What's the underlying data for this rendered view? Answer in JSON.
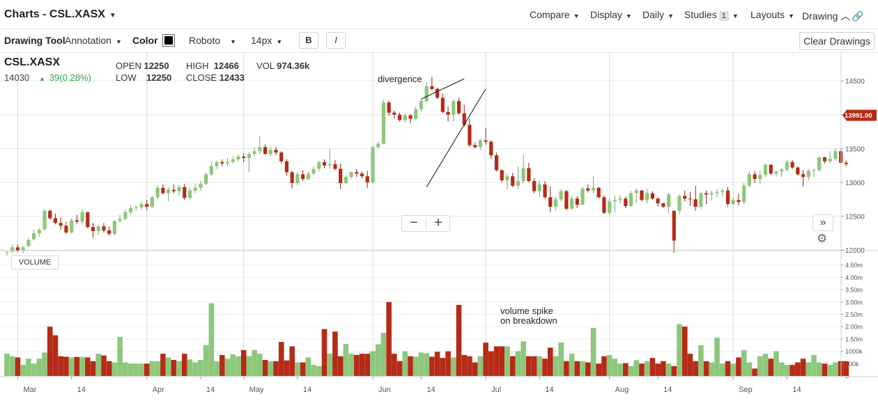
{
  "header": {
    "title": "Charts - CSL.XASX",
    "menus": [
      "Compare",
      "Display",
      "Daily",
      "Studies",
      "Layouts",
      "Drawing"
    ],
    "studies_count": "1"
  },
  "toolbar": {
    "drawing_tool_label": "Drawing Tool",
    "drawing_tool_value": "Annotation",
    "color_label": "Color",
    "color_value": "#000000",
    "font_value": "Roboto",
    "size_value": "14px",
    "bold_label": "B",
    "italic_label": "I",
    "clear_label": "Clear Drawings"
  },
  "quote": {
    "symbol": "CSL.XASX",
    "last": "14030",
    "change": "39(0.28%)",
    "open_label": "OPEN",
    "open": "12250",
    "high_label": "HIGH",
    "high": "12466",
    "vol_label": "VOL",
    "vol": "974.36k",
    "low_label": "LOW",
    "low": "12250",
    "close_label": "CLOSE",
    "close": "12433"
  },
  "panel": {
    "volume_label": "VOLUME"
  },
  "colors": {
    "up": "#8dc77c",
    "down": "#b52b15",
    "price_tag": "#b52b15",
    "change": "#27a844"
  },
  "chart_data": {
    "type": "candlestick",
    "price_axis": {
      "range": [
        11930,
        14830
      ],
      "ticks": [
        12000,
        12500,
        13000,
        13500,
        14000,
        14500
      ],
      "tick_labels": [
        "12000",
        "12500",
        "13000",
        "13500",
        "",
        "14500"
      ]
    },
    "volume_axis": {
      "range": [
        0,
        4.8
      ],
      "ticks": [
        0,
        0.5,
        1.0,
        1.5,
        2.0,
        2.5,
        3.0,
        3.5,
        4.0,
        4.5
      ],
      "tick_labels": [
        "0",
        "500k",
        "1000k",
        "1.50m",
        "2.00m",
        "2.50m",
        "3.00m",
        "3.50m",
        "4.00m",
        "4.50m"
      ]
    },
    "date_labels": [
      "Mar",
      "14",
      "Apr",
      "14",
      "May",
      "14",
      "Jun",
      "14",
      "Jul",
      "14",
      "Aug",
      "14",
      "Sep",
      "14"
    ],
    "month_separators": [
      "Mar",
      "Apr",
      "May",
      "Jun",
      "Jul",
      "Aug",
      "Sep"
    ],
    "current_price": "13991.00",
    "annotations": [
      {
        "text": "divergence"
      },
      {
        "text": "volume spike",
        "text2": "on breakdown"
      }
    ],
    "trendlines": [
      {
        "from": [
          "Jun 14",
          14230
        ],
        "to": [
          "Jun 26",
          14530
        ]
      },
      {
        "from": [
          "Jun 9",
          12930
        ],
        "to": [
          "Jun 30",
          14380
        ]
      }
    ],
    "candles": [
      [
        11960,
        11980,
        11920,
        11970,
        0.9
      ],
      [
        11980,
        12080,
        11960,
        12040,
        0.8
      ],
      [
        12040,
        12080,
        11970,
        11990,
        0.75
      ],
      [
        11990,
        12060,
        11950,
        12040,
        0.45
      ],
      [
        12060,
        12180,
        12040,
        12150,
        0.7
      ],
      [
        12160,
        12300,
        12140,
        12250,
        0.5
      ],
      [
        12250,
        12320,
        12200,
        12300,
        0.7
      ],
      [
        12310,
        12610,
        12290,
        12580,
        0.95
      ],
      [
        12580,
        12600,
        12450,
        12470,
        2.0
      ],
      [
        12470,
        12540,
        12380,
        12400,
        1.65
      ],
      [
        12400,
        12480,
        12300,
        12360,
        0.8
      ],
      [
        12360,
        12420,
        12240,
        12260,
        0.78
      ],
      [
        12260,
        12470,
        12240,
        12440,
        0.75
      ],
      [
        12440,
        12520,
        12380,
        12420,
        0.77
      ],
      [
        12420,
        12600,
        12380,
        12560,
        0.77
      ],
      [
        12560,
        12560,
        12320,
        12340,
        0.75
      ],
      [
        12340,
        12400,
        12180,
        12280,
        0.6
      ],
      [
        12280,
        12380,
        12220,
        12350,
        0.9
      ],
      [
        12350,
        12400,
        12260,
        12290,
        0.83
      ],
      [
        12290,
        12350,
        12210,
        12240,
        0.6
      ],
      [
        12240,
        12440,
        12220,
        12430,
        0.55
      ],
      [
        12430,
        12520,
        12400,
        12460,
        1.58
      ],
      [
        12460,
        12600,
        12440,
        12560,
        0.55
      ],
      [
        12560,
        12670,
        12520,
        12620,
        0.5
      ],
      [
        12620,
        12660,
        12580,
        12630,
        0.5
      ],
      [
        12630,
        12720,
        12600,
        12680,
        0.5
      ],
      [
        12680,
        12740,
        12590,
        12640,
        0.5
      ],
      [
        12640,
        12800,
        12620,
        12780,
        0.6
      ],
      [
        12780,
        12960,
        12760,
        12920,
        0.6
      ],
      [
        12920,
        12970,
        12820,
        12840,
        0.9
      ],
      [
        12840,
        12930,
        12720,
        12890,
        0.75
      ],
      [
        12890,
        12970,
        12840,
        12870,
        0.65
      ],
      [
        12870,
        12960,
        12800,
        12930,
        0.6
      ],
      [
        12930,
        12980,
        12740,
        12770,
        0.9
      ],
      [
        12770,
        12920,
        12750,
        12880,
        0.67
      ],
      [
        12880,
        12980,
        12840,
        12920,
        0.55
      ],
      [
        12920,
        13020,
        12880,
        12980,
        0.65
      ],
      [
        12980,
        13150,
        12960,
        13120,
        1.25
      ],
      [
        13120,
        13300,
        13100,
        13240,
        2.95
      ],
      [
        13240,
        13320,
        13200,
        13300,
        0.6
      ],
      [
        13300,
        13340,
        13240,
        13280,
        0.85
      ],
      [
        13280,
        13360,
        13240,
        13300,
        0.7
      ],
      [
        13300,
        13380,
        13280,
        13340,
        0.88
      ],
      [
        13340,
        13420,
        13300,
        13380,
        0.8
      ],
      [
        13380,
        13430,
        13300,
        13360,
        1.05
      ],
      [
        13360,
        13450,
        13150,
        13420,
        0.8
      ],
      [
        13420,
        13520,
        13380,
        13460,
        1.05
      ],
      [
        13460,
        13680,
        13420,
        13520,
        0.9
      ],
      [
        13520,
        13560,
        13410,
        13420,
        0.65
      ],
      [
        13420,
        13530,
        13380,
        13480,
        0.6
      ],
      [
        13480,
        13520,
        13400,
        13440,
        0.6
      ],
      [
        13440,
        13460,
        13280,
        13310,
        1.38
      ],
      [
        13310,
        13340,
        13100,
        13150,
        0.63
      ],
      [
        13150,
        13170,
        12910,
        12990,
        1.2
      ],
      [
        12990,
        13150,
        12960,
        13120,
        0.55
      ],
      [
        13120,
        13180,
        13020,
        13050,
        0.55
      ],
      [
        13050,
        13160,
        13030,
        13130,
        0.75
      ],
      [
        13130,
        13240,
        13100,
        13200,
        0.45
      ],
      [
        13200,
        13320,
        13160,
        13300,
        0.4
      ],
      [
        13300,
        13340,
        13210,
        13250,
        1.9
      ],
      [
        13250,
        13500,
        13200,
        13270,
        0.9
      ],
      [
        13270,
        13330,
        13180,
        13200,
        1.8
      ],
      [
        13200,
        13280,
        12900,
        12990,
        0.8
      ],
      [
        12990,
        13100,
        12980,
        13080,
        1.3
      ],
      [
        13080,
        13160,
        13050,
        13150,
        0.9
      ],
      [
        13150,
        13200,
        13080,
        13130,
        0.85
      ],
      [
        13130,
        13160,
        13060,
        13090,
        0.9
      ],
      [
        13090,
        13170,
        12920,
        13000,
        0.9
      ],
      [
        13000,
        13540,
        12980,
        13520,
        1.0
      ],
      [
        13520,
        13600,
        13500,
        13570,
        1.28
      ],
      [
        13570,
        14220,
        13560,
        14180,
        1.75
      ],
      [
        14180,
        14210,
        13980,
        14030,
        3.0
      ],
      [
        14030,
        14060,
        13940,
        14000,
        0.9
      ],
      [
        14000,
        14030,
        13900,
        13920,
        0.6
      ],
      [
        13920,
        14020,
        13880,
        13990,
        1.0
      ],
      [
        13990,
        14010,
        13870,
        13940,
        0.8
      ],
      [
        13940,
        14120,
        13920,
        14080,
        0.78
      ],
      [
        14080,
        14230,
        14040,
        14200,
        0.95
      ],
      [
        14200,
        14480,
        14180,
        14420,
        0.92
      ],
      [
        14420,
        14560,
        14360,
        14380,
        0.78
      ],
      [
        14380,
        14400,
        14230,
        14250,
        0.98
      ],
      [
        14250,
        14310,
        14020,
        14040,
        0.73
      ],
      [
        14040,
        14120,
        13900,
        14000,
        1.0
      ],
      [
        14000,
        14230,
        13900,
        14200,
        0.75
      ],
      [
        14200,
        14250,
        14000,
        14020,
        2.88
      ],
      [
        14020,
        14150,
        13820,
        13850,
        0.85
      ],
      [
        13850,
        13940,
        13520,
        13550,
        0.8
      ],
      [
        13550,
        13590,
        13500,
        13520,
        0.55
      ],
      [
        13520,
        13640,
        13480,
        13620,
        0.8
      ],
      [
        13620,
        13800,
        13560,
        13600,
        1.35
      ],
      [
        13600,
        13620,
        13350,
        13400,
        1.0
      ],
      [
        13400,
        13440,
        13160,
        13180,
        1.2
      ],
      [
        13180,
        13190,
        13000,
        13030,
        1.2
      ],
      [
        13030,
        13130,
        12900,
        13090,
        1.2
      ],
      [
        13090,
        13140,
        12930,
        12950,
        0.8
      ],
      [
        12950,
        13230,
        12900,
        13020,
        1.0
      ],
      [
        13020,
        13410,
        12990,
        13210,
        1.4
      ],
      [
        13210,
        13290,
        13000,
        13020,
        0.8
      ],
      [
        13020,
        13060,
        12840,
        12870,
        0.8
      ],
      [
        12870,
        13030,
        12780,
        12970,
        0.8
      ],
      [
        12970,
        13020,
        12750,
        12780,
        0.7
      ],
      [
        12780,
        12940,
        12560,
        12640,
        1.15
      ],
      [
        12640,
        12790,
        12580,
        12750,
        0.8
      ],
      [
        12750,
        12900,
        12720,
        12870,
        1.36
      ],
      [
        12870,
        12890,
        12590,
        12610,
        0.6
      ],
      [
        12610,
        12800,
        12600,
        12760,
        0.9
      ],
      [
        12760,
        12800,
        12620,
        12670,
        0.6
      ],
      [
        12670,
        12940,
        12660,
        12910,
        0.6
      ],
      [
        12910,
        12970,
        12850,
        12880,
        0.55
      ],
      [
        12880,
        13090,
        12840,
        12920,
        1.95
      ],
      [
        12920,
        12930,
        12760,
        12780,
        0.5
      ],
      [
        12780,
        12810,
        12530,
        12550,
        0.8
      ],
      [
        12550,
        12770,
        12520,
        12720,
        0.85
      ],
      [
        12720,
        12800,
        12560,
        12740,
        0.7
      ],
      [
        12740,
        12810,
        12690,
        12760,
        0.5
      ],
      [
        12760,
        12790,
        12620,
        12650,
        0.52
      ],
      [
        12650,
        12870,
        12640,
        12840,
        0.4
      ],
      [
        12840,
        12910,
        12700,
        12880,
        0.64
      ],
      [
        12880,
        12890,
        12720,
        12740,
        0.5
      ],
      [
        12740,
        12910,
        12690,
        12840,
        0.6
      ],
      [
        12840,
        12870,
        12740,
        12760,
        0.73
      ],
      [
        12760,
        12780,
        12640,
        12690,
        0.5
      ],
      [
        12690,
        12700,
        12620,
        12640,
        0.6
      ],
      [
        12640,
        12840,
        12540,
        12820,
        0.5
      ],
      [
        12580,
        12580,
        11960,
        12140,
        0.4
      ],
      [
        12580,
        12820,
        12530,
        12800,
        2.1
      ],
      [
        12800,
        12880,
        12720,
        12760,
        2.0
      ],
      [
        12760,
        12860,
        12650,
        12750,
        0.9
      ],
      [
        12750,
        12950,
        12580,
        12640,
        0.6
      ],
      [
        12640,
        12860,
        12610,
        12840,
        1.25
      ],
      [
        12840,
        12880,
        12680,
        12820,
        0.6
      ],
      [
        12820,
        12880,
        12730,
        12840,
        0.55
      ],
      [
        12840,
        12900,
        12780,
        12860,
        1.55
      ],
      [
        12860,
        12910,
        12790,
        12880,
        0.5
      ],
      [
        12880,
        12930,
        12640,
        12680,
        0.6
      ],
      [
        12680,
        12780,
        12660,
        12740,
        0.5
      ],
      [
        12740,
        12830,
        12660,
        12710,
        0.75
      ],
      [
        12710,
        12990,
        12680,
        12950,
        1.05
      ],
      [
        12950,
        13170,
        12930,
        13120,
        0.55
      ],
      [
        13120,
        13170,
        12990,
        13050,
        0.3
      ],
      [
        13050,
        13180,
        12980,
        13110,
        0.8
      ],
      [
        13110,
        13280,
        13080,
        13260,
        0.9
      ],
      [
        13260,
        13270,
        13110,
        13130,
        0.7
      ],
      [
        13130,
        13170,
        13090,
        13160,
        1.0
      ],
      [
        13160,
        13210,
        13080,
        13190,
        0.55
      ],
      [
        13190,
        13330,
        13160,
        13300,
        0.45
      ],
      [
        13300,
        13330,
        13200,
        13220,
        0.45
      ],
      [
        13220,
        13230,
        13100,
        13120,
        0.55
      ],
      [
        13120,
        13180,
        12940,
        13080,
        0.7
      ],
      [
        13080,
        13200,
        13030,
        13170,
        0.55
      ],
      [
        13170,
        13200,
        13080,
        13180,
        0.85
      ],
      [
        13180,
        13390,
        13160,
        13370,
        0.55
      ],
      [
        13370,
        13380,
        13280,
        13310,
        0.5
      ],
      [
        13310,
        13460,
        13280,
        13350,
        0.45
      ],
      [
        13350,
        13510,
        13320,
        13460,
        0.55
      ],
      [
        13460,
        13490,
        13270,
        13290,
        0.6
      ],
      [
        13290,
        13320,
        13240,
        13270,
        0.6
      ]
    ]
  }
}
